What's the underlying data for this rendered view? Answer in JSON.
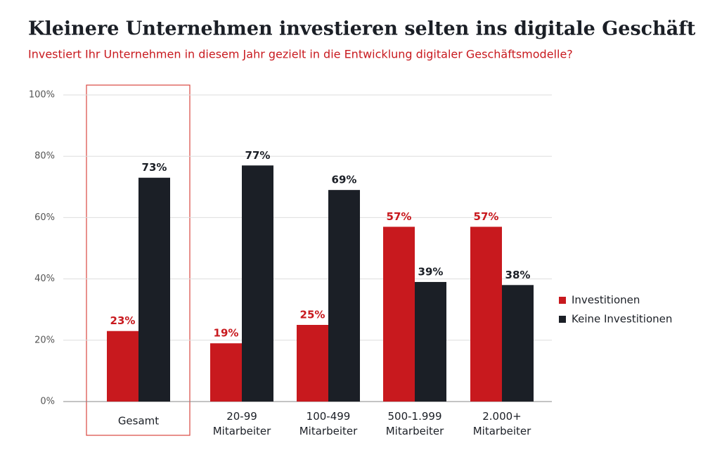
{
  "chart_data": {
    "type": "bar",
    "title": "Kleinere Unternehmen investieren selten ins digitale Geschäft",
    "subtitle": "Investiert Ihr Unternehmen in diesem Jahr gezielt in die Entwicklung digitaler Geschäftsmodelle?",
    "categories": [
      "Gesamt",
      "20-99 Mitarbeiter",
      "100-499 Mitarbeiter",
      "500-1.999 Mitarbeiter",
      "2.000+ Mitarbeiter"
    ],
    "series": [
      {
        "name": "Investitionen",
        "color": "#c8191e",
        "values": [
          23,
          19,
          25,
          57,
          57
        ],
        "value_labels": [
          "23%",
          "19%",
          "25%",
          "57%",
          "57%"
        ]
      },
      {
        "name": "Keine Investitionen",
        "color": "#1b1f26",
        "values": [
          73,
          77,
          69,
          39,
          38
        ],
        "value_labels": [
          "73%",
          "77%",
          "69%",
          "39%",
          "38%"
        ]
      }
    ],
    "ylim": [
      0,
      100
    ],
    "yticks": [
      {
        "value": 0,
        "label": "0%"
      },
      {
        "value": 20,
        "label": "20%"
      },
      {
        "value": 40,
        "label": "40%"
      },
      {
        "value": 60,
        "label": "60%"
      },
      {
        "value": 80,
        "label": "80%"
      },
      {
        "value": 100,
        "label": "100%"
      }
    ],
    "grid": true,
    "legend": "right"
  }
}
